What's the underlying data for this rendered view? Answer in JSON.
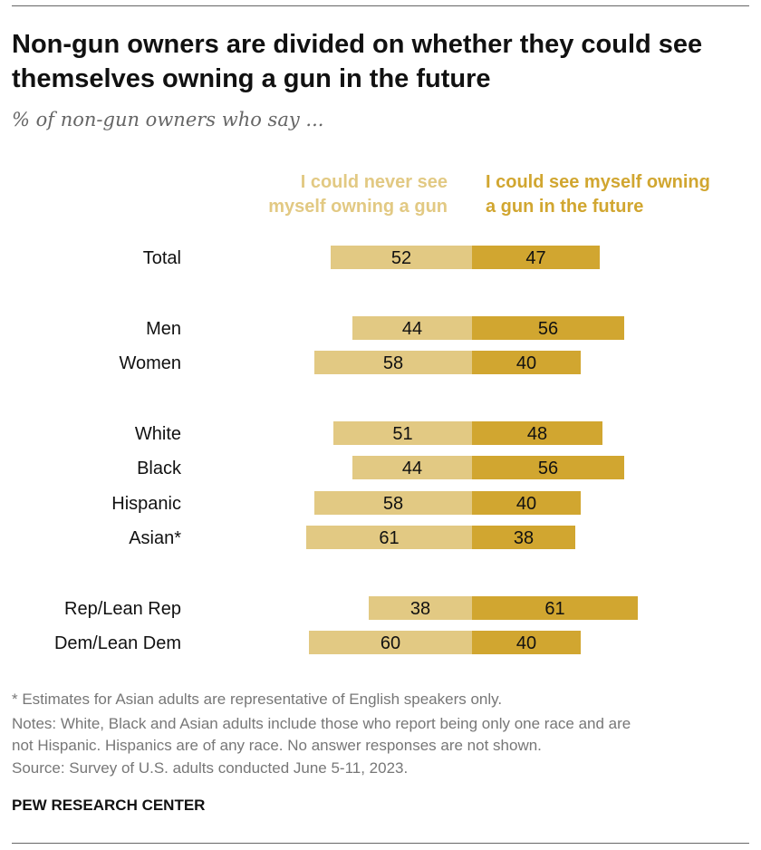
{
  "title": "Non-gun owners are divided on whether they could see themselves owning a gun in the future",
  "subtitle": "% of non-gun owners who say ...",
  "chart_data": {
    "type": "bar",
    "orientation": "horizontal-diverging",
    "stacked": true,
    "categories": [
      "Total",
      "Men",
      "Women",
      "White",
      "Black",
      "Hispanic",
      "Asian*",
      "Rep/Lean Rep",
      "Dem/Lean Dem"
    ],
    "series": [
      {
        "name": "I could never see myself owning a gun",
        "color": "#E2C983",
        "values": [
          52,
          44,
          58,
          51,
          44,
          58,
          61,
          38,
          60
        ]
      },
      {
        "name": "I could see myself owning a gun in the future",
        "color": "#D1A630",
        "values": [
          47,
          56,
          40,
          48,
          56,
          40,
          38,
          61,
          40
        ]
      }
    ],
    "legend_position": "top",
    "grid": false
  },
  "legend": {
    "left_line1": "I could never see",
    "left_line2": "myself owning a gun",
    "right_line1": "I could see myself owning",
    "right_line2": "a gun in the future"
  },
  "notes": {
    "asterisk": "* Estimates for Asian adults are representative of English speakers only.",
    "notes_line1": "Notes: White, Black and Asian adults include those who report being only one race and are",
    "notes_line2": "not Hispanic. Hispanics are of any race. No answer responses are not shown.",
    "source": "Source: Survey of U.S. adults conducted June 5-11, 2023."
  },
  "brand": "PEW RESEARCH CENTER"
}
